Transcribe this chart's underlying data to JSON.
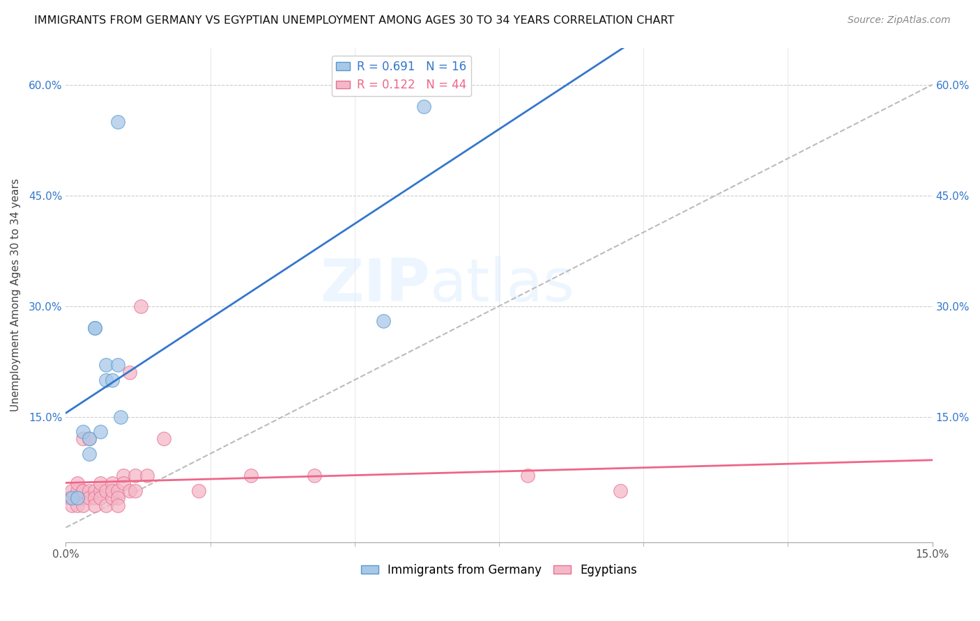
{
  "title": "IMMIGRANTS FROM GERMANY VS EGYPTIAN UNEMPLOYMENT AMONG AGES 30 TO 34 YEARS CORRELATION CHART",
  "source": "Source: ZipAtlas.com",
  "ylabel": "Unemployment Among Ages 30 to 34 years",
  "xlim": [
    0,
    0.15
  ],
  "ylim": [
    -0.02,
    0.65
  ],
  "xtick_vals": [
    0.0,
    0.15
  ],
  "xtick_labels": [
    "0.0%",
    "15.0%"
  ],
  "ytick_vals": [
    0.15,
    0.3,
    0.45,
    0.6
  ],
  "ytick_labels": [
    "15.0%",
    "30.0%",
    "45.0%",
    "60.0%"
  ],
  "blue_color": "#a8c8e8",
  "pink_color": "#f4b8c8",
  "blue_edge_color": "#5599cc",
  "pink_edge_color": "#e87090",
  "blue_line_color": "#3377cc",
  "pink_line_color": "#ee6688",
  "R_blue": 0.691,
  "N_blue": 16,
  "R_pink": 0.122,
  "N_pink": 44,
  "legend_label_blue": "Immigrants from Germany",
  "legend_label_pink": "Egyptians",
  "blue_scatter_x": [
    0.001,
    0.002,
    0.003,
    0.004,
    0.004,
    0.005,
    0.005,
    0.006,
    0.007,
    0.007,
    0.008,
    0.009,
    0.009,
    0.0095,
    0.055,
    0.062
  ],
  "blue_scatter_y": [
    0.04,
    0.04,
    0.13,
    0.1,
    0.12,
    0.27,
    0.27,
    0.13,
    0.22,
    0.2,
    0.2,
    0.22,
    0.55,
    0.15,
    0.28,
    0.57
  ],
  "pink_scatter_x": [
    0.0005,
    0.001,
    0.001,
    0.001,
    0.002,
    0.002,
    0.002,
    0.002,
    0.003,
    0.003,
    0.003,
    0.003,
    0.003,
    0.004,
    0.004,
    0.004,
    0.005,
    0.005,
    0.005,
    0.006,
    0.006,
    0.006,
    0.007,
    0.007,
    0.008,
    0.008,
    0.008,
    0.009,
    0.009,
    0.009,
    0.01,
    0.01,
    0.011,
    0.011,
    0.012,
    0.012,
    0.013,
    0.014,
    0.017,
    0.023,
    0.032,
    0.043,
    0.08,
    0.096
  ],
  "pink_scatter_y": [
    0.04,
    0.04,
    0.03,
    0.05,
    0.04,
    0.05,
    0.03,
    0.06,
    0.05,
    0.04,
    0.05,
    0.03,
    0.12,
    0.05,
    0.04,
    0.12,
    0.05,
    0.04,
    0.03,
    0.05,
    0.04,
    0.06,
    0.05,
    0.03,
    0.06,
    0.04,
    0.05,
    0.05,
    0.04,
    0.03,
    0.07,
    0.06,
    0.05,
    0.21,
    0.07,
    0.05,
    0.3,
    0.07,
    0.12,
    0.05,
    0.07,
    0.07,
    0.07,
    0.05
  ],
  "watermark_zip": "ZIP",
  "watermark_atlas": "atlas",
  "background_color": "#ffffff",
  "grid_color": "#cccccc"
}
